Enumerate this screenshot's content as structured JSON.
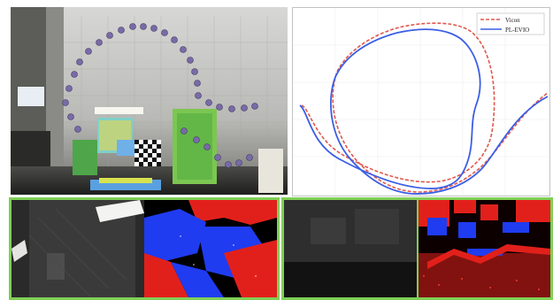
{
  "legend": {
    "vicon_label": "Vicon",
    "plevio_label": "PL-EVIO"
  },
  "colors": {
    "vicon": "#e2574c",
    "plevio": "#3b5ee6",
    "frame_green": "#7fcf56",
    "event_red": "#e2201b",
    "event_blue": "#1f3cf0"
  }
}
